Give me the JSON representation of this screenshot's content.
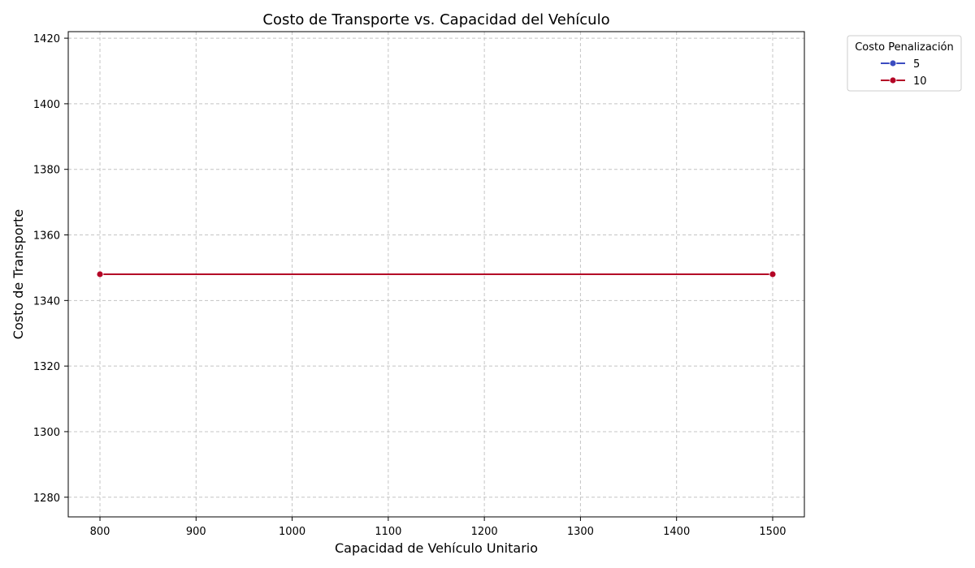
{
  "chart_data": {
    "type": "line",
    "title": "Costo de Transporte vs. Capacidad del Vehículo",
    "xlabel": "Capacidad de Vehículo Unitario",
    "ylabel": "Costo de Transporte",
    "xlim": [
      767,
      1533
    ],
    "ylim": [
      1274,
      1422
    ],
    "xticks": [
      800,
      900,
      1000,
      1100,
      1200,
      1300,
      1400,
      1500
    ],
    "yticks": [
      1280,
      1300,
      1320,
      1340,
      1360,
      1380,
      1400,
      1420
    ],
    "grid": true,
    "legend": {
      "title": "Costo Penalización",
      "placement": "top-right-outside"
    },
    "series": [
      {
        "name": "5",
        "color": "#3b4cc0",
        "x": [
          800,
          1500
        ],
        "y": [
          1348,
          1348
        ]
      },
      {
        "name": "10",
        "color": "#b40426",
        "x": [
          800,
          1500
        ],
        "y": [
          1348,
          1348
        ]
      }
    ]
  }
}
